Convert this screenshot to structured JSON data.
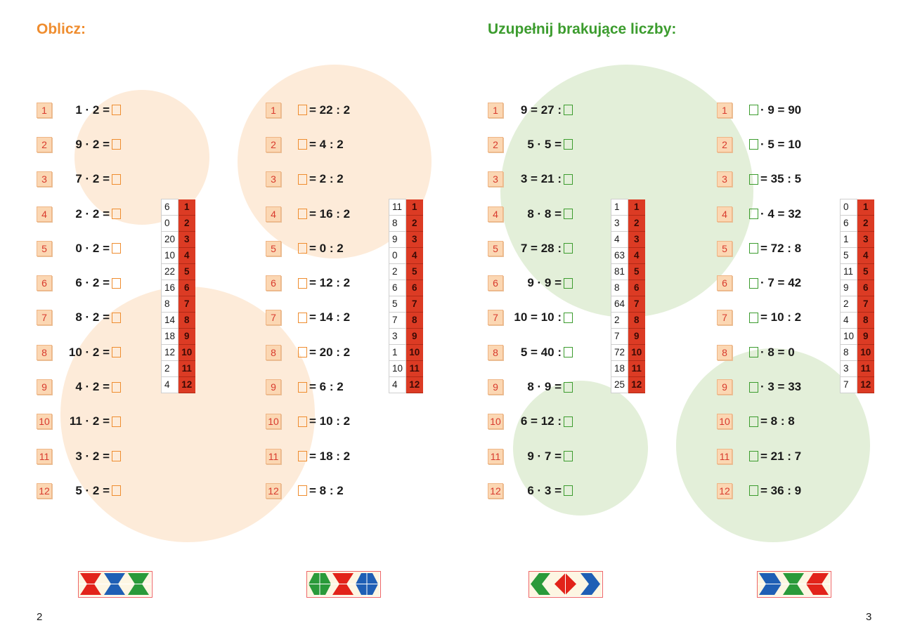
{
  "left_page": {
    "title": "Oblicz:",
    "page_number": "2",
    "columns": [
      {
        "items": [
          {
            "n": "1",
            "pre": "1 · 2 =",
            "post": ""
          },
          {
            "n": "2",
            "pre": "9 · 2 =",
            "post": ""
          },
          {
            "n": "3",
            "pre": "7 · 2 =",
            "post": ""
          },
          {
            "n": "4",
            "pre": "2 · 2 =",
            "post": ""
          },
          {
            "n": "5",
            "pre": "0 · 2 =",
            "post": ""
          },
          {
            "n": "6",
            "pre": "6 · 2 =",
            "post": ""
          },
          {
            "n": "7",
            "pre": "8 · 2 =",
            "post": ""
          },
          {
            "n": "8",
            "pre": "10 · 2 =",
            "post": ""
          },
          {
            "n": "9",
            "pre": "4 · 2 =",
            "post": ""
          },
          {
            "n": "10",
            "pre": "11 · 2 =",
            "post": ""
          },
          {
            "n": "11",
            "pre": "3 · 2 =",
            "post": ""
          },
          {
            "n": "12",
            "pre": "5 · 2 =",
            "post": ""
          }
        ],
        "key": [
          {
            "value": "6",
            "n": "1"
          },
          {
            "value": "0",
            "n": "2"
          },
          {
            "value": "20",
            "n": "3"
          },
          {
            "value": "10",
            "n": "4"
          },
          {
            "value": "22",
            "n": "5"
          },
          {
            "value": "16",
            "n": "6"
          },
          {
            "value": "8",
            "n": "7"
          },
          {
            "value": "14",
            "n": "8"
          },
          {
            "value": "18",
            "n": "9"
          },
          {
            "value": "12",
            "n": "10"
          },
          {
            "value": "2",
            "n": "11"
          },
          {
            "value": "4",
            "n": "12"
          }
        ]
      },
      {
        "items": [
          {
            "n": "1",
            "pre": "",
            "post": "= 22 : 2"
          },
          {
            "n": "2",
            "pre": "",
            "post": "= 4 : 2"
          },
          {
            "n": "3",
            "pre": "",
            "post": "= 2 : 2"
          },
          {
            "n": "4",
            "pre": "",
            "post": "= 16 : 2"
          },
          {
            "n": "5",
            "pre": "",
            "post": "= 0 : 2"
          },
          {
            "n": "6",
            "pre": "",
            "post": "= 12 : 2"
          },
          {
            "n": "7",
            "pre": "",
            "post": "= 14 : 2"
          },
          {
            "n": "8",
            "pre": "",
            "post": "= 20 : 2"
          },
          {
            "n": "9",
            "pre": "",
            "post": "= 6 : 2"
          },
          {
            "n": "10",
            "pre": "",
            "post": "= 10 : 2"
          },
          {
            "n": "11",
            "pre": "",
            "post": "= 18 : 2"
          },
          {
            "n": "12",
            "pre": "",
            "post": "= 8 : 2"
          }
        ],
        "key": [
          {
            "value": "11",
            "n": "1"
          },
          {
            "value": "8",
            "n": "2"
          },
          {
            "value": "9",
            "n": "3"
          },
          {
            "value": "0",
            "n": "4"
          },
          {
            "value": "2",
            "n": "5"
          },
          {
            "value": "6",
            "n": "6"
          },
          {
            "value": "5",
            "n": "7"
          },
          {
            "value": "7",
            "n": "8"
          },
          {
            "value": "3",
            "n": "9"
          },
          {
            "value": "1",
            "n": "10"
          },
          {
            "value": "10",
            "n": "11"
          },
          {
            "value": "4",
            "n": "12"
          }
        ]
      }
    ]
  },
  "right_page": {
    "title": "Uzupełnij brakujące liczby:",
    "page_number": "3",
    "columns": [
      {
        "items": [
          {
            "n": "1",
            "pre": "9 = 27 :",
            "post": ""
          },
          {
            "n": "2",
            "pre": "5 · 5 =",
            "post": ""
          },
          {
            "n": "3",
            "pre": "3 = 21 :",
            "post": ""
          },
          {
            "n": "4",
            "pre": "8 · 8 =",
            "post": ""
          },
          {
            "n": "5",
            "pre": "7 = 28 :",
            "post": ""
          },
          {
            "n": "6",
            "pre": "9 · 9 =",
            "post": ""
          },
          {
            "n": "7",
            "pre": "10 = 10 :",
            "post": ""
          },
          {
            "n": "8",
            "pre": "5 = 40 :",
            "post": ""
          },
          {
            "n": "9",
            "pre": "8 · 9 =",
            "post": ""
          },
          {
            "n": "10",
            "pre": "6 = 12 :",
            "post": ""
          },
          {
            "n": "11",
            "pre": "9 · 7 =",
            "post": ""
          },
          {
            "n": "12",
            "pre": "6 · 3 =",
            "post": ""
          }
        ],
        "key": [
          {
            "value": "1",
            "n": "1"
          },
          {
            "value": "3",
            "n": "2"
          },
          {
            "value": "4",
            "n": "3"
          },
          {
            "value": "63",
            "n": "4"
          },
          {
            "value": "81",
            "n": "5"
          },
          {
            "value": "8",
            "n": "6"
          },
          {
            "value": "64",
            "n": "7"
          },
          {
            "value": "2",
            "n": "8"
          },
          {
            "value": "7",
            "n": "9"
          },
          {
            "value": "72",
            "n": "10"
          },
          {
            "value": "18",
            "n": "11"
          },
          {
            "value": "25",
            "n": "12"
          }
        ]
      },
      {
        "items": [
          {
            "n": "1",
            "pre": "",
            "post": "· 9 = 90"
          },
          {
            "n": "2",
            "pre": "",
            "post": "· 5 = 10"
          },
          {
            "n": "3",
            "pre": "",
            "post": "= 35 : 5"
          },
          {
            "n": "4",
            "pre": "",
            "post": "· 4 = 32"
          },
          {
            "n": "5",
            "pre": "",
            "post": "= 72 : 8"
          },
          {
            "n": "6",
            "pre": "",
            "post": "· 7 = 42"
          },
          {
            "n": "7",
            "pre": "",
            "post": "= 10 : 2"
          },
          {
            "n": "8",
            "pre": "",
            "post": "· 8 = 0"
          },
          {
            "n": "9",
            "pre": "",
            "post": "· 3 = 33"
          },
          {
            "n": "10",
            "pre": "",
            "post": "= 8 : 8"
          },
          {
            "n": "11",
            "pre": "",
            "post": "= 21 : 7"
          },
          {
            "n": "12",
            "pre": "",
            "post": "= 36 : 9"
          }
        ],
        "key": [
          {
            "value": "0",
            "n": "1"
          },
          {
            "value": "6",
            "n": "2"
          },
          {
            "value": "1",
            "n": "3"
          },
          {
            "value": "5",
            "n": "4"
          },
          {
            "value": "11",
            "n": "5"
          },
          {
            "value": "9",
            "n": "6"
          },
          {
            "value": "2",
            "n": "7"
          },
          {
            "value": "4",
            "n": "8"
          },
          {
            "value": "10",
            "n": "9"
          },
          {
            "value": "8",
            "n": "10"
          },
          {
            "value": "3",
            "n": "11"
          },
          {
            "value": "7",
            "n": "12"
          }
        ]
      }
    ]
  },
  "colors": {
    "orange_accent": "#ef8d2f",
    "green_accent": "#3c9c2e",
    "key_red": "#dc3b24",
    "badge_fill": "#fbd7b3"
  },
  "patterns": [
    {
      "name": "pattern-red-blue-green",
      "colors": [
        "#e2231a",
        "#1f5fb5",
        "#2a9a3a"
      ]
    },
    {
      "name": "pattern-green-red-blue",
      "colors": [
        "#2a9a3a",
        "#e2231a",
        "#1f5fb5"
      ]
    },
    {
      "name": "pattern-green-red-blue-diamonds",
      "colors": [
        "#2a9a3a",
        "#e2231a",
        "#1f5fb5"
      ]
    },
    {
      "name": "pattern-blue-green-red",
      "colors": [
        "#1f5fb5",
        "#2a9a3a",
        "#e2231a"
      ]
    }
  ]
}
